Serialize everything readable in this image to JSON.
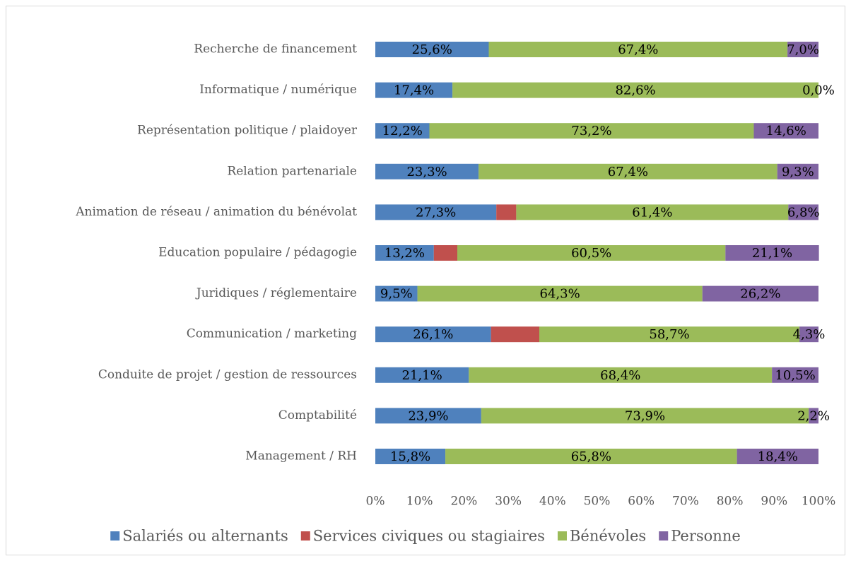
{
  "chart_data": {
    "type": "stacked_bar_horizontal",
    "categories": [
      "Recherche de financement",
      "Informatique / numérique",
      "Représentation politique / plaidoyer",
      "Relation partenariale",
      "Animation de réseau / animation du bénévolat",
      "Education populaire / pédagogie",
      "Juridiques / réglementaire",
      "Communication / marketing",
      "Conduite de projet / gestion de ressources",
      "Comptabilité",
      "Management / RH"
    ],
    "series": [
      {
        "name": "Salariés ou alternants",
        "color": "#4f81bd",
        "values": [
          25.6,
          17.4,
          12.2,
          23.3,
          27.3,
          13.2,
          9.5,
          26.1,
          21.1,
          23.9,
          15.8
        ],
        "value_labels": [
          "25,6%",
          "17,4%",
          "12,2%",
          "23,3%",
          "27,3%",
          "13,2%",
          "9,5%",
          "26,1%",
          "21,1%",
          "23,9%",
          "15,8%"
        ]
      },
      {
        "name": "Services civiques ou stagiaires",
        "color": "#c0504d",
        "values": [
          0,
          0,
          0,
          0,
          4.5,
          5.3,
          0,
          10.9,
          0,
          0,
          0
        ]
      },
      {
        "name": "Bénévoles",
        "color": "#9bbb59",
        "values": [
          67.4,
          82.6,
          73.2,
          67.4,
          61.4,
          60.5,
          64.3,
          58.7,
          68.4,
          73.9,
          65.8
        ],
        "value_labels": [
          "67,4%",
          "82,6%",
          "73,2%",
          "67,4%",
          "61,4%",
          "60,5%",
          "64,3%",
          "58,7%",
          "68,4%",
          "73,9%",
          "65,8%"
        ]
      },
      {
        "name": "Personne",
        "color": "#8064a2",
        "values": [
          7.0,
          0.0,
          14.6,
          9.3,
          6.8,
          21.1,
          26.2,
          4.3,
          10.5,
          2.2,
          18.4
        ],
        "value_labels": [
          "7,0%",
          "0,0%",
          "14,6%",
          "9,3%",
          "6,8%",
          "21,1%",
          "26,2%",
          "4,3%",
          "10,5%",
          "2,2%",
          "18,4%"
        ]
      }
    ],
    "xlim": [
      0,
      100
    ],
    "xticks": [
      {
        "value": 0,
        "label": "0%"
      },
      {
        "value": 10,
        "label": "10%"
      },
      {
        "value": 20,
        "label": "20%"
      },
      {
        "value": 30,
        "label": "30%"
      },
      {
        "value": 40,
        "label": "40%"
      },
      {
        "value": 50,
        "label": "50%"
      },
      {
        "value": 60,
        "label": "60%"
      },
      {
        "value": 70,
        "label": "70%"
      },
      {
        "value": 80,
        "label": "80%"
      },
      {
        "value": 90,
        "label": "90%"
      },
      {
        "value": 100,
        "label": "100%"
      }
    ],
    "legend": "bottom"
  }
}
